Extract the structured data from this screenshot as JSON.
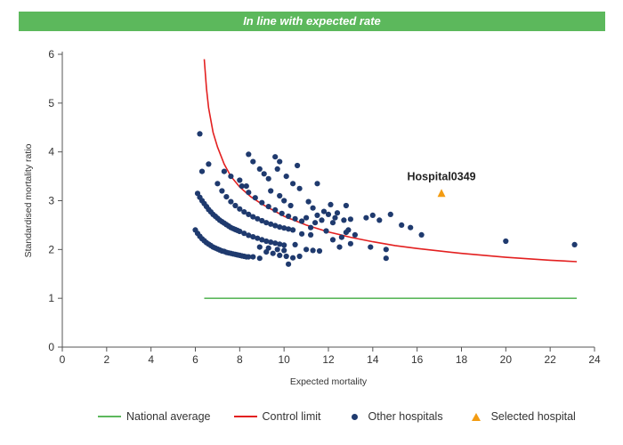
{
  "banner": {
    "text": "In line with expected rate"
  },
  "colors": {
    "banner": "#5cb85c",
    "national_average": "#5cb85c",
    "control_limit": "#e32020",
    "other_hospitals": "#1f3a6e",
    "selected_hospital": "#f39c12"
  },
  "legend": {
    "national_average": "National average",
    "control_limit": "Control limit",
    "other_hospitals": "Other hospitals",
    "selected_hospital": "Selected hospital"
  },
  "chart_data": {
    "type": "scatter",
    "xlabel": "Expected mortality",
    "ylabel": "Standardised mortality ratio",
    "xlim": [
      0,
      24
    ],
    "ylim": [
      0,
      6
    ],
    "xticks": [
      0,
      2,
      4,
      6,
      8,
      10,
      12,
      14,
      16,
      18,
      20,
      22,
      24
    ],
    "yticks": [
      0,
      1,
      2,
      3,
      4,
      5,
      6
    ],
    "grid": false,
    "legend_position": "bottom",
    "national_average": {
      "name": "National average",
      "x": [
        6.4,
        23.2
      ],
      "y": [
        1.0,
        1.0
      ]
    },
    "control_limit": {
      "name": "Control limit",
      "points": [
        [
          6.4,
          5.9
        ],
        [
          6.5,
          5.3
        ],
        [
          6.6,
          4.9
        ],
        [
          6.8,
          4.4
        ],
        [
          7.0,
          4.1
        ],
        [
          7.3,
          3.75
        ],
        [
          7.6,
          3.5
        ],
        [
          8.0,
          3.28
        ],
        [
          8.5,
          3.08
        ],
        [
          9.0,
          2.93
        ],
        [
          10.0,
          2.68
        ],
        [
          11.0,
          2.5
        ],
        [
          12.0,
          2.36
        ],
        [
          13.0,
          2.25
        ],
        [
          14.0,
          2.16
        ],
        [
          15.0,
          2.08
        ],
        [
          16.0,
          2.02
        ],
        [
          18.0,
          1.92
        ],
        [
          20.0,
          1.84
        ],
        [
          22.0,
          1.78
        ],
        [
          23.2,
          1.75
        ]
      ]
    },
    "other_hospitals": {
      "name": "Other hospitals",
      "points": [
        [
          6.0,
          2.4
        ],
        [
          6.1,
          2.33
        ],
        [
          6.2,
          2.27
        ],
        [
          6.3,
          2.22
        ],
        [
          6.4,
          2.18
        ],
        [
          6.5,
          2.14
        ],
        [
          6.6,
          2.11
        ],
        [
          6.7,
          2.08
        ],
        [
          6.8,
          2.05
        ],
        [
          6.9,
          2.03
        ],
        [
          7.0,
          2.01
        ],
        [
          7.1,
          1.99
        ],
        [
          7.2,
          1.97
        ],
        [
          7.3,
          1.96
        ],
        [
          7.4,
          1.94
        ],
        [
          7.5,
          1.93
        ],
        [
          7.6,
          1.92
        ],
        [
          7.7,
          1.91
        ],
        [
          7.8,
          1.9
        ],
        [
          7.9,
          1.89
        ],
        [
          8.0,
          1.88
        ],
        [
          8.1,
          1.87
        ],
        [
          8.2,
          1.86
        ],
        [
          8.3,
          1.85
        ],
        [
          8.4,
          1.85
        ],
        [
          6.1,
          3.15
        ],
        [
          6.2,
          3.07
        ],
        [
          6.3,
          3.0
        ],
        [
          6.4,
          2.94
        ],
        [
          6.5,
          2.88
        ],
        [
          6.6,
          2.82
        ],
        [
          6.7,
          2.77
        ],
        [
          6.8,
          2.72
        ],
        [
          6.9,
          2.68
        ],
        [
          7.0,
          2.64
        ],
        [
          7.1,
          2.6
        ],
        [
          7.2,
          2.57
        ],
        [
          7.3,
          2.54
        ],
        [
          7.4,
          2.51
        ],
        [
          7.5,
          2.48
        ],
        [
          7.6,
          2.45
        ],
        [
          7.7,
          2.43
        ],
        [
          7.8,
          2.41
        ],
        [
          7.9,
          2.39
        ],
        [
          8.0,
          2.37
        ],
        [
          8.2,
          2.33
        ],
        [
          8.4,
          2.29
        ],
        [
          8.6,
          2.26
        ],
        [
          8.8,
          2.23
        ],
        [
          9.0,
          2.2
        ],
        [
          9.2,
          2.17
        ],
        [
          9.4,
          2.15
        ],
        [
          9.6,
          2.13
        ],
        [
          9.8,
          2.11
        ],
        [
          10.0,
          2.09
        ],
        [
          7.0,
          3.35
        ],
        [
          7.2,
          3.2
        ],
        [
          7.4,
          3.08
        ],
        [
          7.6,
          2.98
        ],
        [
          7.8,
          2.9
        ],
        [
          8.0,
          2.83
        ],
        [
          8.2,
          2.77
        ],
        [
          8.4,
          2.72
        ],
        [
          8.6,
          2.67
        ],
        [
          8.8,
          2.63
        ],
        [
          9.0,
          2.59
        ],
        [
          9.2,
          2.55
        ],
        [
          9.4,
          2.52
        ],
        [
          9.6,
          2.49
        ],
        [
          9.8,
          2.46
        ],
        [
          10.0,
          2.44
        ],
        [
          10.2,
          2.42
        ],
        [
          10.4,
          2.4
        ],
        [
          8.1,
          3.3
        ],
        [
          8.4,
          3.17
        ],
        [
          8.7,
          3.06
        ],
        [
          9.0,
          2.96
        ],
        [
          9.3,
          2.88
        ],
        [
          9.6,
          2.81
        ],
        [
          9.9,
          2.74
        ],
        [
          10.2,
          2.68
        ],
        [
          10.5,
          2.63
        ],
        [
          10.8,
          2.58
        ],
        [
          8.6,
          1.85
        ],
        [
          8.9,
          1.82
        ],
        [
          9.2,
          1.95
        ],
        [
          9.5,
          1.92
        ],
        [
          9.8,
          1.88
        ],
        [
          10.1,
          1.86
        ],
        [
          10.4,
          1.83
        ],
        [
          10.7,
          1.86
        ],
        [
          10.2,
          1.7
        ],
        [
          8.9,
          2.05
        ],
        [
          9.3,
          2.03
        ],
        [
          9.7,
          2.0
        ],
        [
          10.0,
          1.98
        ],
        [
          10.5,
          2.1
        ],
        [
          11.0,
          2.0
        ],
        [
          11.3,
          1.98
        ],
        [
          11.6,
          1.97
        ],
        [
          10.8,
          2.32
        ],
        [
          11.2,
          2.3
        ],
        [
          6.2,
          4.37
        ],
        [
          6.3,
          3.6
        ],
        [
          6.6,
          3.75
        ],
        [
          7.3,
          3.6
        ],
        [
          7.6,
          3.5
        ],
        [
          8.0,
          3.42
        ],
        [
          8.3,
          3.3
        ],
        [
          8.4,
          3.95
        ],
        [
          8.6,
          3.8
        ],
        [
          8.9,
          3.65
        ],
        [
          9.1,
          3.55
        ],
        [
          9.3,
          3.45
        ],
        [
          9.6,
          3.9
        ],
        [
          9.8,
          3.8
        ],
        [
          9.7,
          3.65
        ],
        [
          10.1,
          3.5
        ],
        [
          10.4,
          3.35
        ],
        [
          10.6,
          3.72
        ],
        [
          9.4,
          3.2
        ],
        [
          9.8,
          3.1
        ],
        [
          10.0,
          3.0
        ],
        [
          10.3,
          2.9
        ],
        [
          10.7,
          3.25
        ],
        [
          11.1,
          2.98
        ],
        [
          11.5,
          3.35
        ],
        [
          11.3,
          2.85
        ],
        [
          11.8,
          2.78
        ],
        [
          12.1,
          2.92
        ],
        [
          12.4,
          2.75
        ],
        [
          12.8,
          2.9
        ],
        [
          11.0,
          2.65
        ],
        [
          11.4,
          2.55
        ],
        [
          11.7,
          2.6
        ],
        [
          12.0,
          2.72
        ],
        [
          12.3,
          2.65
        ],
        [
          12.7,
          2.6
        ],
        [
          13.0,
          2.62
        ],
        [
          11.5,
          2.7
        ],
        [
          11.2,
          2.45
        ],
        [
          12.2,
          2.55
        ],
        [
          11.9,
          2.38
        ],
        [
          12.2,
          2.2
        ],
        [
          12.6,
          2.25
        ],
        [
          12.9,
          2.4
        ],
        [
          13.2,
          2.3
        ],
        [
          12.5,
          2.05
        ],
        [
          13.0,
          2.12
        ],
        [
          12.8,
          2.35
        ],
        [
          13.7,
          2.65
        ],
        [
          14.0,
          2.7
        ],
        [
          14.3,
          2.6
        ],
        [
          14.8,
          2.72
        ],
        [
          15.3,
          2.5
        ],
        [
          15.7,
          2.45
        ],
        [
          16.2,
          2.3
        ],
        [
          13.9,
          2.05
        ],
        [
          14.6,
          2.0
        ],
        [
          14.6,
          1.82
        ],
        [
          20.0,
          2.17
        ],
        [
          23.1,
          2.1
        ]
      ]
    },
    "selected_hospital": {
      "name": "Selected hospital",
      "label": "Hospital0349",
      "x": 17.1,
      "y": 3.15
    }
  }
}
